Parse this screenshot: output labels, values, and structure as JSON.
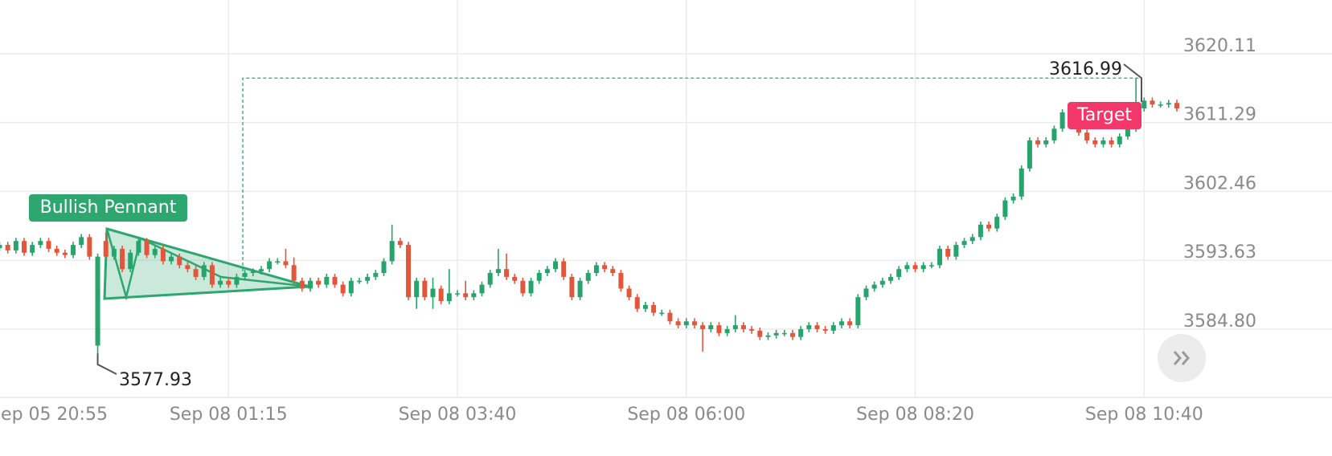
{
  "chart_data": {
    "type": "candlestick",
    "categories": [
      null,
      null,
      null,
      null,
      null,
      null,
      "Sep 05 20:55",
      null,
      null,
      null,
      null,
      null,
      null,
      null,
      null,
      null,
      null,
      null,
      null,
      null,
      null,
      null,
      null,
      null,
      null,
      null,
      null,
      null,
      "Sep 08 01:15",
      null,
      null,
      null,
      null,
      null,
      null,
      null,
      null,
      null,
      null,
      null,
      null,
      null,
      null,
      null,
      null,
      null,
      null,
      null,
      null,
      null,
      null,
      null,
      null,
      null,
      null,
      null,
      "Sep 08 03:40",
      null,
      null,
      null,
      null,
      null,
      null,
      null,
      null,
      null,
      null,
      null,
      null,
      null,
      null,
      null,
      null,
      null,
      null,
      null,
      null,
      null,
      null,
      null,
      null,
      null,
      null,
      null,
      "Sep 08 06:00",
      null,
      null,
      null,
      null,
      null,
      null,
      null,
      null,
      null,
      null,
      null,
      null,
      null,
      null,
      null,
      null,
      null,
      null,
      null,
      null,
      null,
      null,
      null,
      null,
      null,
      null,
      null,
      "Sep 08 08:20",
      null,
      null,
      null,
      null,
      null,
      null,
      null,
      null,
      null,
      null,
      null,
      null,
      null,
      null,
      null,
      null,
      null,
      null,
      null,
      null,
      null,
      null,
      null,
      null,
      null,
      null,
      null,
      "Sep 08 10:40"
    ],
    "ohlc": [
      [
        3595.2,
        3596.0,
        3594.8,
        3595.6
      ],
      [
        3595.6,
        3596.0,
        3594.5,
        3594.9
      ],
      [
        3594.9,
        3596.5,
        3594.5,
        3596.1
      ],
      [
        3596.1,
        3596.5,
        3594.2,
        3594.6
      ],
      [
        3594.6,
        3596.0,
        3594.2,
        3595.6
      ],
      [
        3595.6,
        3596.5,
        3595.2,
        3596.1
      ],
      [
        3596.1,
        3596.5,
        3594.7,
        3595.1
      ],
      [
        3595.1,
        3595.5,
        3594.2,
        3594.6
      ],
      [
        3594.6,
        3595.0,
        3593.9,
        3594.3
      ],
      [
        3594.3,
        3596.0,
        3593.9,
        3595.6
      ],
      [
        3595.6,
        3597.0,
        3595.2,
        3596.6
      ],
      [
        3596.6,
        3597.0,
        3593.7,
        3594.1
      ],
      [
        3582.7,
        3594.5,
        3581.7,
        3594.1
      ],
      [
        3596.1,
        3597.2,
        3593.7,
        3594.1
      ],
      [
        3594.1,
        3595.5,
        3593.7,
        3595.1
      ],
      [
        3595.1,
        3595.5,
        3592.1,
        3592.5
      ],
      [
        3592.5,
        3595.0,
        3592.1,
        3594.6
      ],
      [
        3594.6,
        3596.5,
        3594.2,
        3596.1
      ],
      [
        3596.1,
        3596.5,
        3593.9,
        3594.3
      ],
      [
        3594.3,
        3595.5,
        3593.9,
        3595.1
      ],
      [
        3595.1,
        3595.5,
        3593.1,
        3593.5
      ],
      [
        3593.5,
        3594.5,
        3593.1,
        3594.1
      ],
      [
        3594.1,
        3594.5,
        3592.6,
        3593.0
      ],
      [
        3593.0,
        3593.4,
        3592.1,
        3592.5
      ],
      [
        3592.5,
        3592.9,
        3591.1,
        3591.5
      ],
      [
        3591.5,
        3593.4,
        3591.1,
        3593.0
      ],
      [
        3593.0,
        3593.4,
        3590.1,
        3590.5
      ],
      [
        3590.5,
        3591.4,
        3590.1,
        3591.0
      ],
      [
        3591.0,
        3591.4,
        3590.1,
        3590.5
      ],
      [
        3590.5,
        3591.9,
        3590.1,
        3591.5
      ],
      [
        3591.5,
        3592.4,
        3591.1,
        3592.0
      ],
      [
        3592.0,
        3592.6,
        3591.6,
        3592.2
      ],
      [
        3592.2,
        3592.9,
        3591.8,
        3592.5
      ],
      [
        3592.5,
        3593.9,
        3592.1,
        3593.5
      ],
      [
        3593.5,
        3593.9,
        3593.1,
        3593.5
      ],
      [
        3593.5,
        3595.1,
        3592.6,
        3593.0
      ],
      [
        3593.0,
        3594.0,
        3590.6,
        3591.0
      ],
      [
        3591.0,
        3591.4,
        3589.6,
        3590.0
      ],
      [
        3590.0,
        3591.4,
        3589.6,
        3591.0
      ],
      [
        3591.0,
        3591.4,
        3590.1,
        3590.5
      ],
      [
        3590.5,
        3591.9,
        3590.1,
        3591.5
      ],
      [
        3591.5,
        3591.9,
        3590.1,
        3590.5
      ],
      [
        3590.5,
        3590.9,
        3589.0,
        3589.4
      ],
      [
        3589.4,
        3591.4,
        3589.0,
        3591.0
      ],
      [
        3591.0,
        3591.4,
        3590.6,
        3591.0
      ],
      [
        3591.0,
        3591.9,
        3590.6,
        3591.5
      ],
      [
        3591.5,
        3592.4,
        3591.1,
        3592.0
      ],
      [
        3592.0,
        3593.9,
        3591.6,
        3593.5
      ],
      [
        3593.5,
        3598.2,
        3593.1,
        3596.1
      ],
      [
        3596.1,
        3596.5,
        3595.2,
        3595.6
      ],
      [
        3595.6,
        3596.0,
        3588.5,
        3588.9
      ],
      [
        3588.9,
        3591.4,
        3587.4,
        3591.0
      ],
      [
        3591.0,
        3591.4,
        3588.5,
        3588.9
      ],
      [
        3588.9,
        3591.4,
        3587.4,
        3590.0
      ],
      [
        3590.0,
        3590.4,
        3588.0,
        3588.4
      ],
      [
        3588.4,
        3592.5,
        3588.0,
        3589.4
      ],
      [
        3589.4,
        3589.8,
        3589.0,
        3589.4
      ],
      [
        3589.4,
        3591.0,
        3588.5,
        3588.9
      ],
      [
        3588.9,
        3589.8,
        3588.5,
        3589.4
      ],
      [
        3589.4,
        3590.9,
        3589.0,
        3590.5
      ],
      [
        3590.5,
        3592.4,
        3590.1,
        3592.0
      ],
      [
        3592.0,
        3595.1,
        3591.6,
        3592.5
      ],
      [
        3592.5,
        3594.5,
        3591.1,
        3591.5
      ],
      [
        3591.5,
        3591.9,
        3590.6,
        3591.0
      ],
      [
        3591.0,
        3591.4,
        3589.0,
        3589.4
      ],
      [
        3589.4,
        3591.4,
        3589.0,
        3591.0
      ],
      [
        3591.0,
        3592.4,
        3590.6,
        3592.0
      ],
      [
        3592.0,
        3592.9,
        3591.6,
        3592.5
      ],
      [
        3592.5,
        3593.9,
        3592.1,
        3593.5
      ],
      [
        3593.5,
        3593.9,
        3591.1,
        3591.5
      ],
      [
        3591.5,
        3591.9,
        3588.5,
        3588.9
      ],
      [
        3588.9,
        3591.4,
        3588.5,
        3591.0
      ],
      [
        3591.0,
        3592.4,
        3590.6,
        3592.0
      ],
      [
        3592.0,
        3593.4,
        3591.6,
        3593.0
      ],
      [
        3593.0,
        3593.4,
        3592.1,
        3592.5
      ],
      [
        3592.5,
        3592.9,
        3591.6,
        3592.0
      ],
      [
        3592.0,
        3592.4,
        3589.6,
        3590.0
      ],
      [
        3590.0,
        3590.4,
        3588.5,
        3588.9
      ],
      [
        3588.9,
        3589.3,
        3587.0,
        3587.4
      ],
      [
        3587.4,
        3588.3,
        3587.0,
        3587.9
      ],
      [
        3587.9,
        3588.3,
        3586.5,
        3586.9
      ],
      [
        3586.9,
        3587.3,
        3586.5,
        3586.9
      ],
      [
        3586.9,
        3587.3,
        3585.4,
        3585.8
      ],
      [
        3585.8,
        3586.2,
        3584.9,
        3585.3
      ],
      [
        3585.3,
        3586.2,
        3584.9,
        3585.8
      ],
      [
        3585.8,
        3586.2,
        3584.9,
        3585.3
      ],
      [
        3585.3,
        3585.7,
        3581.9,
        3584.8
      ],
      [
        3584.8,
        3585.7,
        3584.4,
        3585.3
      ],
      [
        3585.3,
        3585.7,
        3583.9,
        3584.3
      ],
      [
        3584.3,
        3585.2,
        3583.9,
        3584.8
      ],
      [
        3584.8,
        3586.6,
        3584.4,
        3585.3
      ],
      [
        3585.3,
        3585.7,
        3584.4,
        3584.8
      ],
      [
        3584.8,
        3585.2,
        3584.2,
        3584.6
      ],
      [
        3584.6,
        3585.0,
        3583.4,
        3583.8
      ],
      [
        3583.8,
        3584.4,
        3583.4,
        3584.0
      ],
      [
        3584.0,
        3584.7,
        3583.6,
        3584.3
      ],
      [
        3584.3,
        3584.7,
        3583.9,
        3584.3
      ],
      [
        3584.3,
        3584.7,
        3583.4,
        3583.8
      ],
      [
        3583.8,
        3585.2,
        3583.4,
        3584.8
      ],
      [
        3584.8,
        3585.7,
        3584.4,
        3585.3
      ],
      [
        3585.3,
        3585.7,
        3584.4,
        3584.8
      ],
      [
        3584.8,
        3585.2,
        3584.2,
        3584.6
      ],
      [
        3584.6,
        3585.7,
        3584.2,
        3585.3
      ],
      [
        3585.3,
        3586.2,
        3584.9,
        3585.8
      ],
      [
        3585.8,
        3586.2,
        3584.9,
        3585.3
      ],
      [
        3585.3,
        3589.3,
        3584.9,
        3588.9
      ],
      [
        3588.9,
        3590.4,
        3588.5,
        3590.0
      ],
      [
        3590.0,
        3590.9,
        3589.6,
        3590.5
      ],
      [
        3590.5,
        3591.4,
        3590.1,
        3591.0
      ],
      [
        3591.0,
        3591.9,
        3590.6,
        3591.5
      ],
      [
        3591.5,
        3592.9,
        3591.1,
        3592.5
      ],
      [
        3592.5,
        3593.4,
        3592.1,
        3593.0
      ],
      [
        3593.0,
        3593.4,
        3592.1,
        3592.5
      ],
      [
        3592.5,
        3593.4,
        3592.1,
        3593.0
      ],
      [
        3593.0,
        3593.4,
        3592.6,
        3593.0
      ],
      [
        3593.0,
        3595.5,
        3592.6,
        3595.1
      ],
      [
        3595.1,
        3595.5,
        3593.7,
        3594.1
      ],
      [
        3594.1,
        3596.0,
        3593.7,
        3595.6
      ],
      [
        3595.6,
        3596.5,
        3595.2,
        3596.1
      ],
      [
        3596.1,
        3597.0,
        3595.7,
        3596.6
      ],
      [
        3596.6,
        3598.6,
        3596.2,
        3598.2
      ],
      [
        3598.2,
        3598.6,
        3597.3,
        3597.7
      ],
      [
        3597.7,
        3599.6,
        3597.3,
        3599.2
      ],
      [
        3599.2,
        3601.7,
        3598.8,
        3601.3
      ],
      [
        3601.3,
        3602.2,
        3600.9,
        3601.8
      ],
      [
        3601.8,
        3605.8,
        3601.4,
        3605.4
      ],
      [
        3605.4,
        3609.4,
        3605.0,
        3609.0
      ],
      [
        3609.0,
        3609.4,
        3608.1,
        3608.5
      ],
      [
        3608.5,
        3609.4,
        3608.1,
        3609.0
      ],
      [
        3609.0,
        3610.9,
        3608.6,
        3610.5
      ],
      [
        3610.5,
        3613.0,
        3610.1,
        3612.6
      ],
      [
        3612.6,
        3613.0,
        3610.6,
        3611.0
      ],
      [
        3611.0,
        3611.4,
        3609.6,
        3610.0
      ],
      [
        3610.0,
        3610.4,
        3608.6,
        3609.0
      ],
      [
        3609.0,
        3609.4,
        3608.1,
        3608.5
      ],
      [
        3608.5,
        3609.4,
        3608.1,
        3609.0
      ],
      [
        3609.0,
        3609.4,
        3608.1,
        3608.5
      ],
      [
        3608.5,
        3609.9,
        3608.1,
        3609.5
      ],
      [
        3609.5,
        3610.9,
        3609.1,
        3610.5
      ],
      [
        3610.5,
        3617.0,
        3610.1,
        3613.1
      ],
      [
        3613.1,
        3614.5,
        3612.7,
        3614.1
      ],
      [
        3614.1,
        3614.5,
        3613.2,
        3613.6
      ],
      [
        3613.6,
        3614.0,
        3613.2,
        3613.6
      ],
      [
        3613.6,
        3614.2,
        3613.2,
        3613.8
      ],
      [
        3613.8,
        3614.2,
        3612.7,
        3613.1
      ]
    ],
    "up_color": "#26a46b",
    "down_color": "#e2573c",
    "ylim": [
      3576.05,
      3627.0
    ],
    "yticks": [
      {
        "value": 3584.8,
        "label": "3584.80"
      },
      3593.63,
      3602.46,
      3611.29,
      3620.11
    ],
    "grid": true,
    "pattern": {
      "label": "Bullish Pennant",
      "low": 3577.93,
      "target": 3616.99,
      "target_label": "Target"
    }
  }
}
